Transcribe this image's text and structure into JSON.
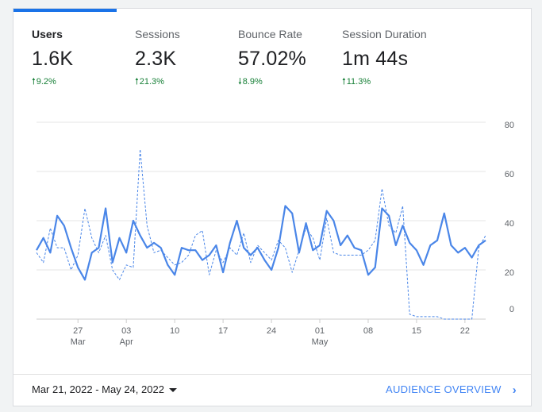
{
  "metrics": [
    {
      "label": "Users",
      "value": "1.6K",
      "change": "9.2%",
      "direction": "up",
      "active": true
    },
    {
      "label": "Sessions",
      "value": "2.3K",
      "change": "21.3%",
      "direction": "up",
      "active": false
    },
    {
      "label": "Bounce Rate",
      "value": "57.02%",
      "change": "8.9%",
      "direction": "down",
      "active": false
    },
    {
      "label": "Session Duration",
      "value": "1m 44s",
      "change": "11.3%",
      "direction": "up",
      "active": false
    }
  ],
  "footer": {
    "date_range": "Mar 21, 2022 - May 24, 2022",
    "audience_link": "AUDIENCE OVERVIEW"
  },
  "colors": {
    "accent": "#1a73e8",
    "series": "#4a86e8",
    "positive": "#188038"
  },
  "chart_data": {
    "type": "line",
    "x_start": "2022-03-21",
    "x_end": "2022-05-24",
    "x_tick_labels": [
      {
        "day": "27",
        "month": "Mar"
      },
      {
        "day": "03",
        "month": "Apr"
      },
      {
        "day": "10",
        "month": ""
      },
      {
        "day": "17",
        "month": ""
      },
      {
        "day": "24",
        "month": ""
      },
      {
        "day": "01",
        "month": "May"
      },
      {
        "day": "08",
        "month": ""
      },
      {
        "day": "15",
        "month": ""
      },
      {
        "day": "22",
        "month": ""
      }
    ],
    "y_tick_labels": [
      "80",
      "60",
      "40",
      "20",
      "0"
    ],
    "ylim": [
      0,
      80
    ],
    "grid": true,
    "series": [
      {
        "style": "solid",
        "values": [
          28,
          33,
          27,
          42,
          38,
          29,
          21,
          16,
          27,
          29,
          45,
          23,
          33,
          27,
          40,
          34,
          29,
          31,
          29,
          22,
          18,
          29,
          28,
          28,
          24,
          26,
          30,
          19,
          31,
          40,
          29,
          26,
          29,
          24,
          20,
          29,
          46,
          43,
          27,
          39,
          28,
          30,
          44,
          40,
          30,
          34,
          29,
          28,
          18,
          21,
          45,
          42,
          30,
          38,
          31,
          28,
          22,
          30,
          32,
          43,
          30,
          27,
          29,
          25,
          30,
          32
        ],
        "values_below_zero_note": ""
      },
      {
        "style": "dashed",
        "values": [
          27,
          23,
          37,
          29,
          29,
          20,
          26,
          45,
          33,
          27,
          34,
          20,
          16,
          22,
          21,
          69,
          38,
          27,
          28,
          25,
          22,
          23,
          26,
          34,
          36,
          18,
          28,
          23,
          29,
          26,
          35,
          23,
          30,
          27,
          24,
          32,
          29,
          19,
          28,
          37,
          33,
          24,
          41,
          27,
          26,
          26,
          26,
          26,
          28,
          32,
          53,
          38,
          35,
          46,
          2,
          1,
          1,
          1,
          1,
          0,
          0,
          0,
          0,
          0,
          29,
          34
        ]
      }
    ]
  }
}
